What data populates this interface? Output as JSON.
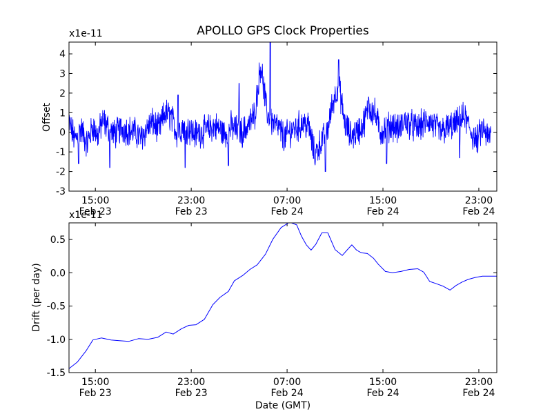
{
  "chart_data": [
    {
      "type": "line",
      "title": "APOLLO GPS Clock Properties",
      "ylabel": "Offset",
      "xlabel": "",
      "y_multiplier": "x1e-11",
      "ylim": [
        -3,
        4.6
      ],
      "yticks": [
        -3,
        -2,
        -1,
        0,
        1,
        2,
        3,
        4
      ],
      "ytick_labels": [
        "-3",
        "-2",
        "-1",
        "0",
        "1",
        "2",
        "3",
        "4"
      ],
      "xlim_hours": [
        12.8,
        48.5
      ],
      "xticks_hours": [
        15,
        23,
        31,
        39,
        47
      ],
      "xtick_labels": [
        [
          "15:00",
          "Feb 23"
        ],
        [
          "23:00",
          "Feb 23"
        ],
        [
          "07:00",
          "Feb 24"
        ],
        [
          "15:00",
          "Feb 24"
        ],
        [
          "23:00",
          "Feb 24"
        ]
      ],
      "grid": false,
      "line_color": "#0000ff",
      "x_hours": [
        12.8,
        13.3,
        13.8,
        14.3,
        14.8,
        15.2,
        15.6,
        16.1,
        16.6,
        17.2,
        17.8,
        18.3,
        18.8,
        19.3,
        19.8,
        20.3,
        20.8,
        21.3,
        21.8,
        22.3,
        22.8,
        23.3,
        23.8,
        24.3,
        24.8,
        25.3,
        25.8,
        26.3,
        26.8,
        27.3,
        27.8,
        28.3,
        28.8,
        29.3,
        29.8,
        30.3,
        30.8,
        31.3,
        31.8,
        32.3,
        32.8,
        33.3,
        33.8,
        34.3,
        34.8,
        35.3,
        35.8,
        36.3,
        36.8,
        37.3,
        37.8,
        38.3,
        38.8,
        39.3,
        39.8,
        40.3,
        40.8,
        41.3,
        41.8,
        42.3,
        42.8,
        43.3,
        43.8,
        44.3,
        44.8,
        45.3,
        45.8,
        46.3,
        46.8,
        47.3,
        47.8,
        48.3
      ],
      "values": [
        0.5,
        -0.4,
        0.2,
        -0.6,
        0.3,
        -0.2,
        0.6,
        0.2,
        -0.1,
        0.2,
        0.1,
        0.0,
        -0.3,
        0.2,
        0.5,
        0.1,
        1.0,
        0.8,
        0.0,
        0.3,
        0.2,
        -0.1,
        0.0,
        0.1,
        0.3,
        0.2,
        -0.1,
        0.3,
        0.1,
        0.0,
        0.4,
        0.9,
        3.5,
        1.0,
        0.5,
        0.2,
        -0.3,
        0.1,
        0.2,
        0.5,
        0.3,
        -1.2,
        -0.5,
        -0.1,
        1.5,
        2.5,
        0.5,
        -0.2,
        0.0,
        0.3,
        1.2,
        1.0,
        0.0,
        0.2,
        0.4,
        0.1,
        0.6,
        0.4,
        0.2,
        0.4,
        0.6,
        0.3,
        0.0,
        0.2,
        0.3,
        0.5,
        0.8,
        0.1,
        -0.5,
        0.2,
        -0.3,
        0.1
      ],
      "peaks": [
        {
          "x": 29.6,
          "y": 4.6
        },
        {
          "x": 35.3,
          "y": 3.7
        },
        {
          "x": 27.0,
          "y": 2.5
        },
        {
          "x": 16.2,
          "y": -1.8
        },
        {
          "x": 22.5,
          "y": -1.8
        },
        {
          "x": 34.2,
          "y": -2.0
        },
        {
          "x": 39.3,
          "y": -1.6
        },
        {
          "x": 26.1,
          "y": -1.7
        },
        {
          "x": 13.6,
          "y": -1.6
        },
        {
          "x": 37.8,
          "y": 1.8
        },
        {
          "x": 21.9,
          "y": 1.9
        },
        {
          "x": 45.4,
          "y": -1.3
        }
      ]
    },
    {
      "type": "line",
      "title": "",
      "ylabel": "Drift (per day)",
      "xlabel": "Date (GMT)",
      "y_multiplier": "x1e-11",
      "ylim": [
        -1.5,
        0.75
      ],
      "yticks": [
        -1.5,
        -1.0,
        -0.5,
        0.0,
        0.5
      ],
      "ytick_labels": [
        "-1.5",
        "-1.0",
        "-0.5",
        "0.0",
        "0.5"
      ],
      "xlim_hours": [
        12.8,
        48.5
      ],
      "xticks_hours": [
        15,
        23,
        31,
        39,
        47
      ],
      "xtick_labels": [
        [
          "15:00",
          "Feb 23"
        ],
        [
          "23:00",
          "Feb 23"
        ],
        [
          "07:00",
          "Feb 24"
        ],
        [
          "15:00",
          "Feb 24"
        ],
        [
          "23:00",
          "Feb 24"
        ]
      ],
      "grid": false,
      "line_color": "#0000ff",
      "x_hours": [
        12.8,
        13.5,
        14.2,
        14.8,
        15.5,
        16.3,
        17.0,
        17.8,
        18.6,
        19.4,
        20.2,
        20.9,
        21.5,
        22.2,
        22.8,
        23.4,
        24.1,
        24.8,
        25.4,
        26.1,
        26.6,
        27.3,
        27.9,
        28.5,
        29.2,
        29.8,
        30.5,
        31.2,
        31.8,
        32.2,
        32.6,
        33.0,
        33.4,
        33.9,
        34.4,
        35.0,
        35.6,
        36.0,
        36.4,
        36.8,
        37.2,
        37.7,
        38.2,
        38.6,
        39.2,
        39.8,
        40.5,
        41.2,
        41.9,
        42.4,
        42.9,
        43.4,
        44.0,
        44.6,
        45.1,
        45.6,
        46.1,
        46.7,
        47.3,
        47.9,
        48.5
      ],
      "values": [
        -1.44,
        -1.34,
        -1.18,
        -1.01,
        -0.98,
        -1.01,
        -1.02,
        -1.03,
        -0.99,
        -1.0,
        -0.97,
        -0.89,
        -0.92,
        -0.84,
        -0.79,
        -0.78,
        -0.7,
        -0.48,
        -0.37,
        -0.28,
        -0.12,
        -0.04,
        0.05,
        0.12,
        0.28,
        0.5,
        0.68,
        0.76,
        0.72,
        0.55,
        0.42,
        0.34,
        0.43,
        0.6,
        0.6,
        0.35,
        0.26,
        0.34,
        0.42,
        0.34,
        0.3,
        0.29,
        0.22,
        0.13,
        0.02,
        0.0,
        0.02,
        0.05,
        0.06,
        0.01,
        -0.13,
        -0.16,
        -0.2,
        -0.26,
        -0.19,
        -0.14,
        -0.1,
        -0.07,
        -0.05,
        -0.05,
        -0.05
      ]
    }
  ]
}
